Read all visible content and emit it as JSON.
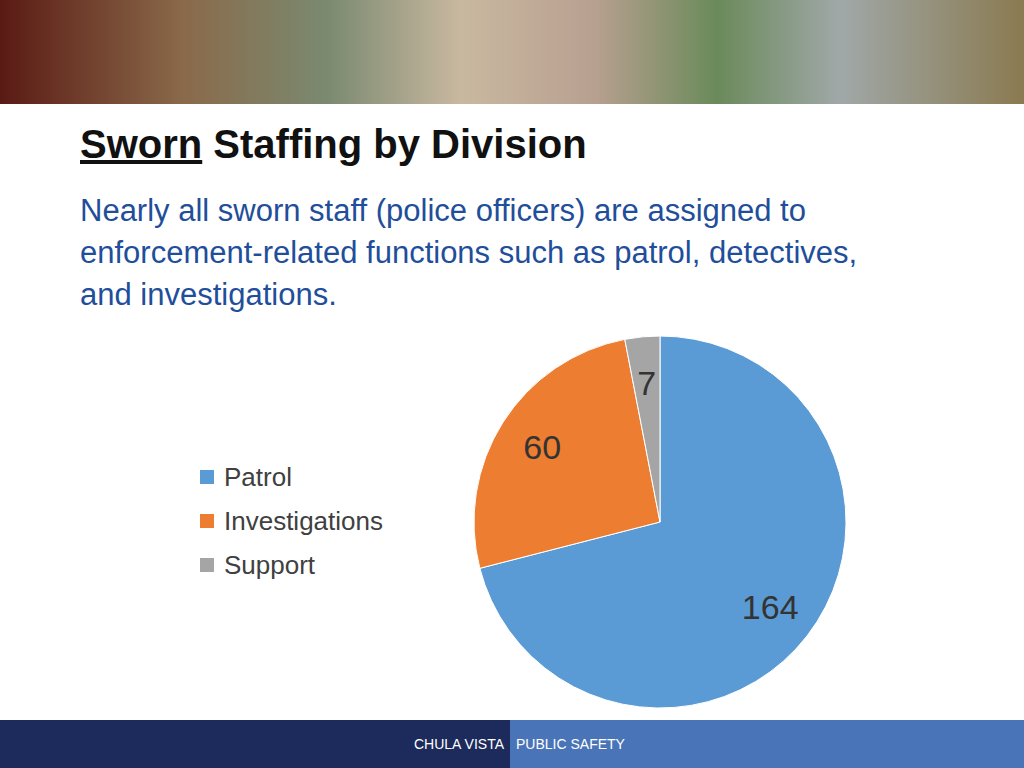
{
  "chart_data": {
    "type": "pie",
    "title": "Sworn Staffing by Division",
    "subtitle": "Nearly all sworn staff (police officers) are assigned to enforcement-related functions such as patrol, detectives, and investigations.",
    "categories": [
      "Patrol",
      "Investigations",
      "Support"
    ],
    "values": [
      164,
      60,
      7
    ],
    "colors": [
      "#5b9bd5",
      "#ed7d31",
      "#a5a5a5"
    ],
    "legend": "left",
    "data_labels": true,
    "annotations": [
      "CHULA VISTA",
      "PUBLIC SAFETY"
    ]
  }
}
